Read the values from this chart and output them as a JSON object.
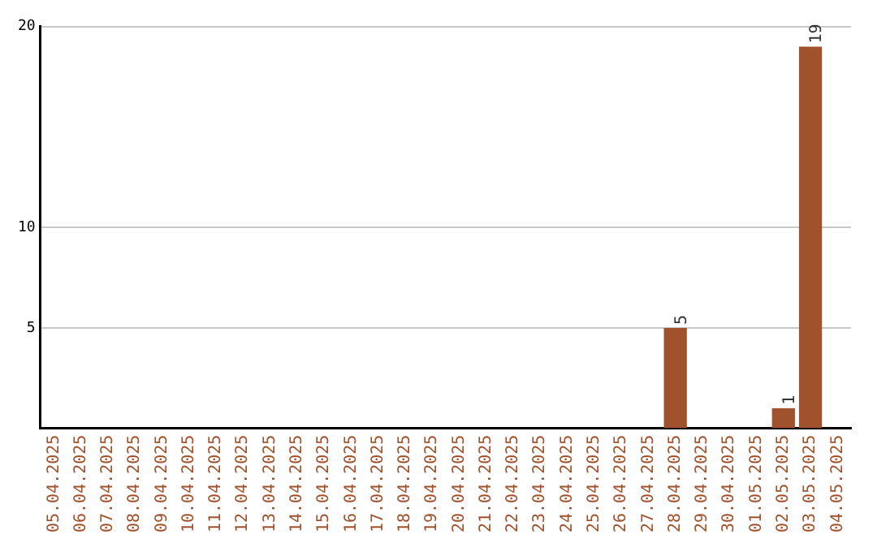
{
  "chart_data": {
    "type": "bar",
    "categories": [
      "05.04.2025",
      "06.04.2025",
      "07.04.2025",
      "08.04.2025",
      "09.04.2025",
      "10.04.2025",
      "11.04.2025",
      "12.04.2025",
      "13.04.2025",
      "14.04.2025",
      "15.04.2025",
      "16.04.2025",
      "17.04.2025",
      "18.04.2025",
      "19.04.2025",
      "20.04.2025",
      "21.04.2025",
      "22.04.2025",
      "23.04.2025",
      "24.04.2025",
      "25.04.2025",
      "26.04.2025",
      "27.04.2025",
      "28.04.2025",
      "29.04.2025",
      "30.04.2025",
      "01.05.2025",
      "02.05.2025",
      "03.05.2025",
      "04.05.2025"
    ],
    "values": [
      0,
      0,
      0,
      0,
      0,
      0,
      0,
      0,
      0,
      0,
      0,
      0,
      0,
      0,
      0,
      0,
      0,
      0,
      0,
      0,
      0,
      0,
      0,
      5,
      0,
      0,
      0,
      1,
      19,
      0
    ],
    "value_labels": [
      null,
      null,
      null,
      null,
      null,
      null,
      null,
      null,
      null,
      null,
      null,
      null,
      null,
      null,
      null,
      null,
      null,
      null,
      null,
      null,
      null,
      null,
      null,
      "5",
      null,
      null,
      null,
      "1",
      "19",
      null
    ],
    "color": "#a0522d",
    "ylim": [
      0,
      20
    ],
    "yticks": [
      5,
      10,
      20
    ],
    "grid": "y",
    "legend": false
  }
}
